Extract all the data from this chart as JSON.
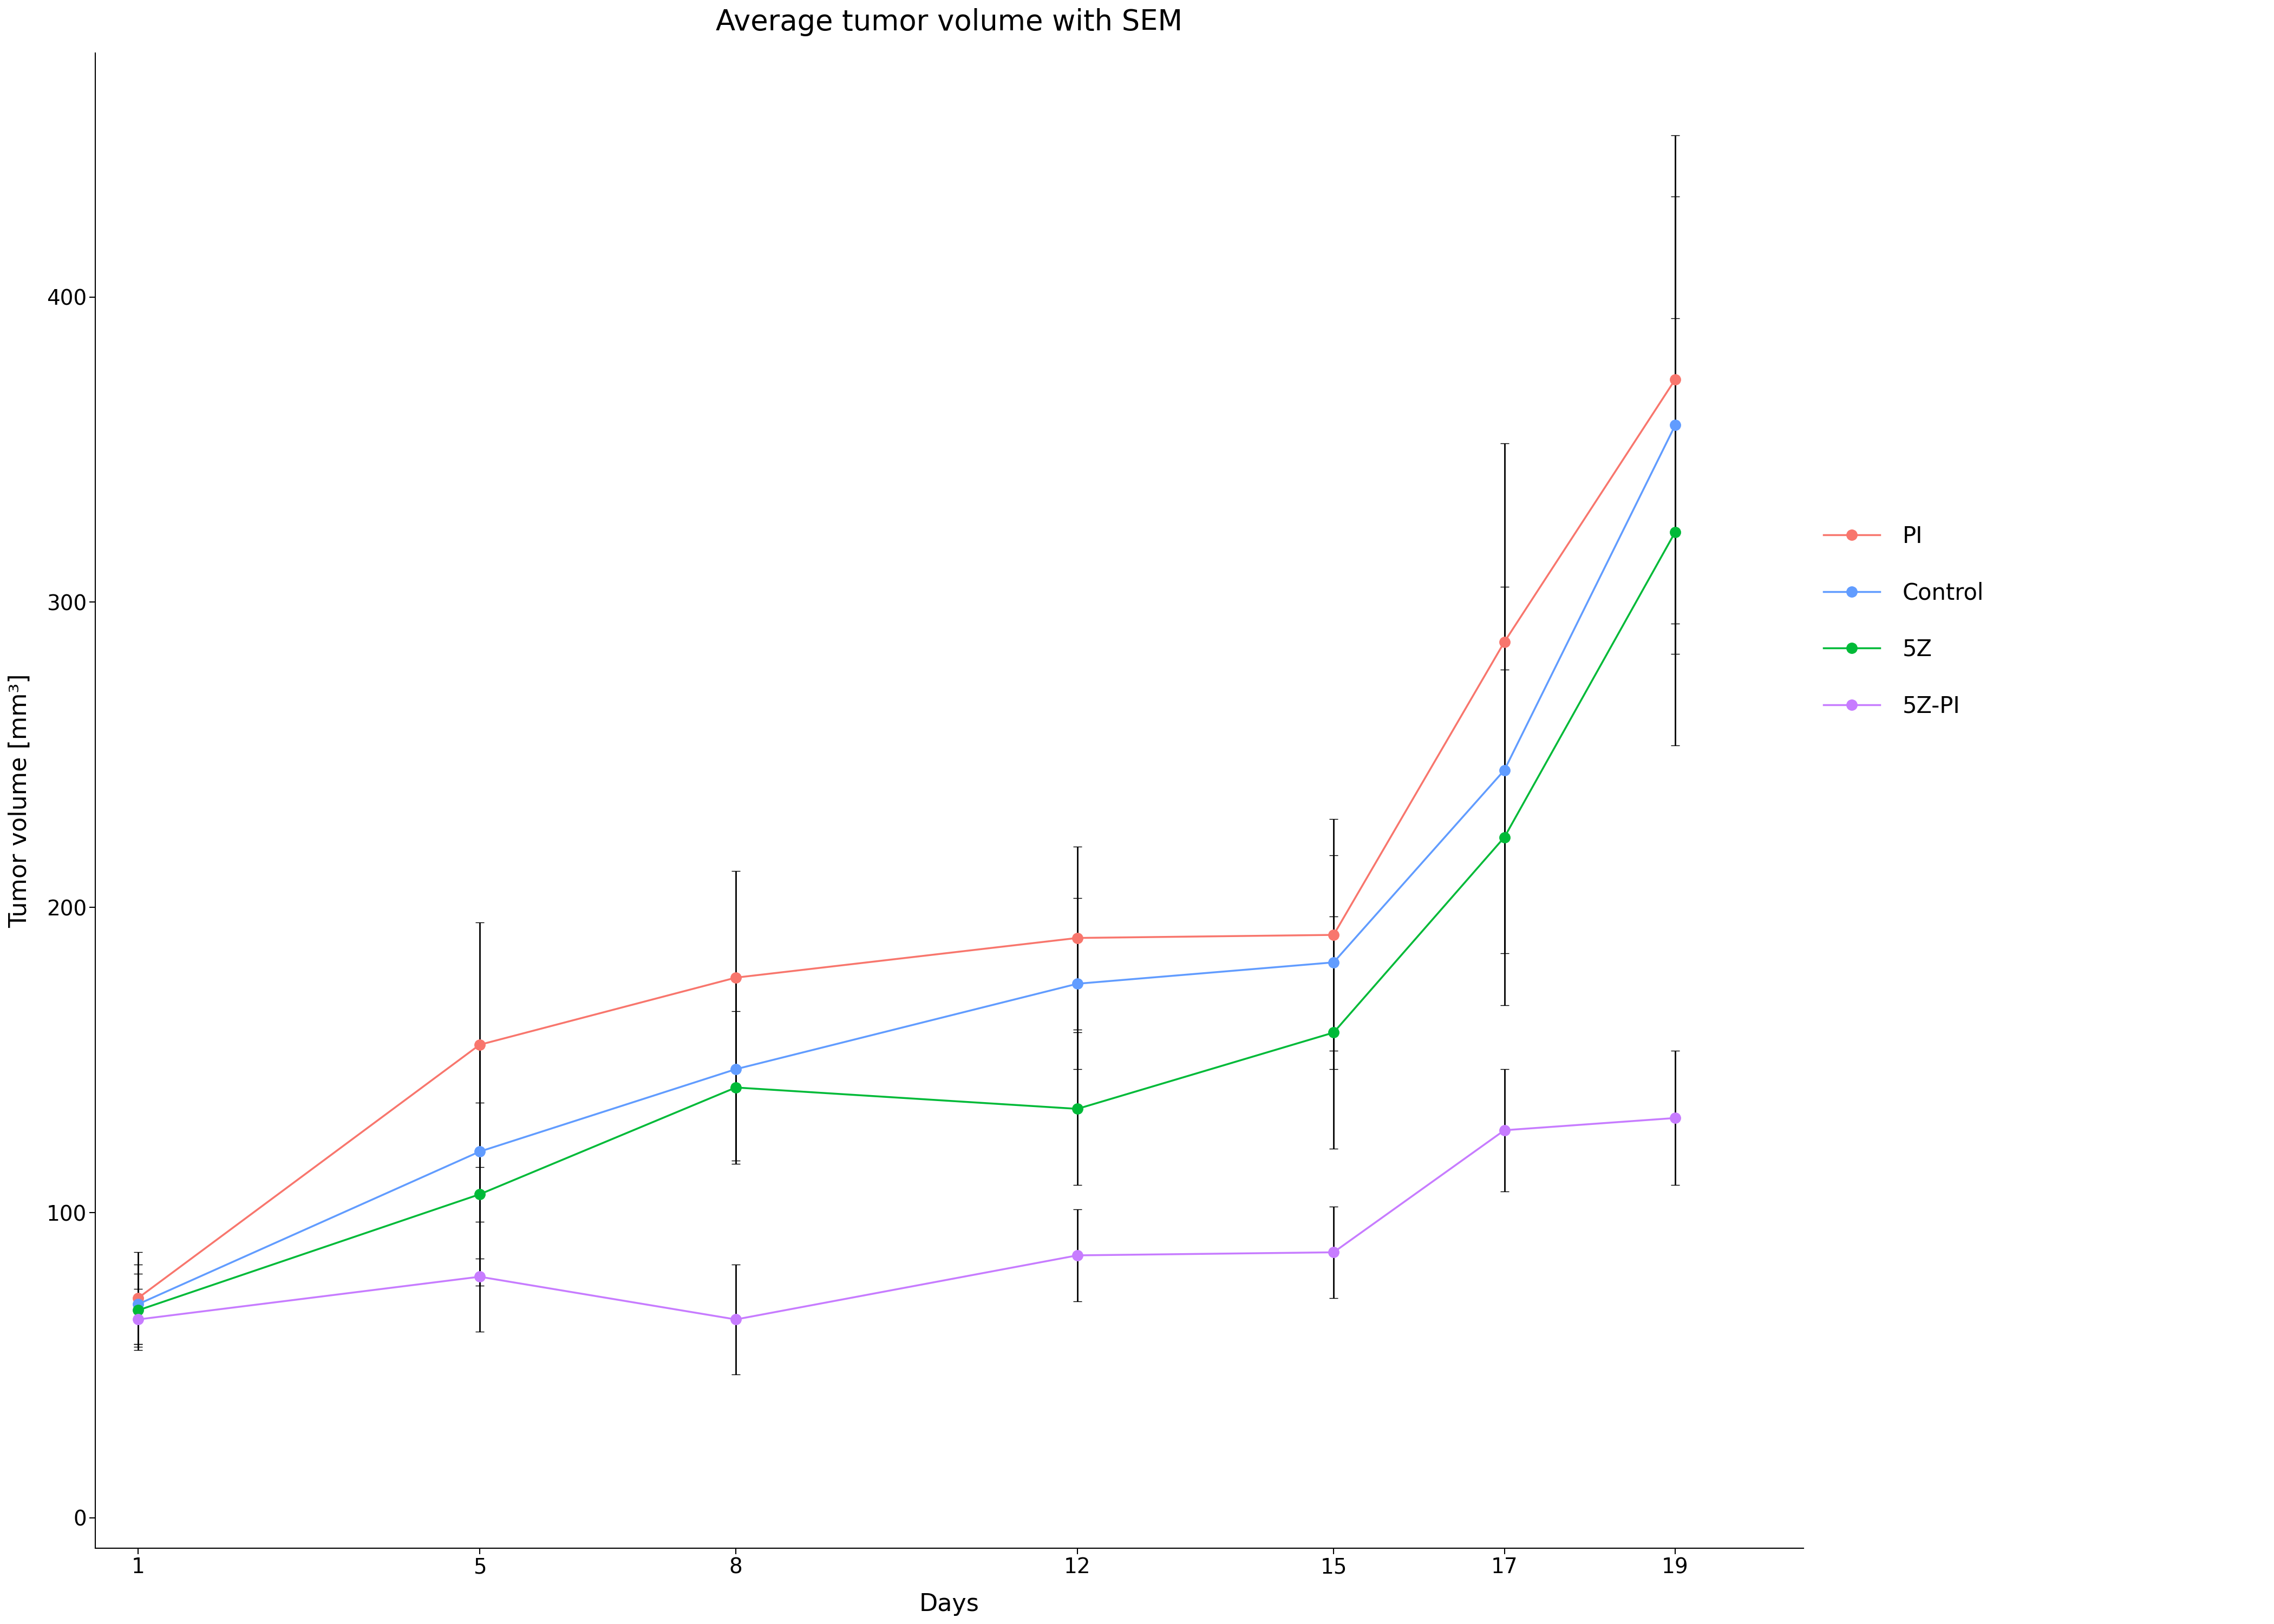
{
  "title": "Average tumor volume with SEM",
  "xlabel": "Days",
  "ylabel": "Tumor volume [mm³]",
  "days": [
    1,
    5,
    8,
    12,
    15,
    17,
    19
  ],
  "series": {
    "PI": {
      "color": "#F8766D",
      "values": [
        72,
        155,
        177,
        190,
        191,
        287,
        373
      ],
      "sem": [
        15,
        40,
        35,
        30,
        38,
        65,
        80
      ]
    },
    "Control": {
      "color": "#619CFF",
      "values": [
        70,
        120,
        147,
        175,
        182,
        245,
        358
      ],
      "sem": [
        13,
        35,
        30,
        28,
        35,
        60,
        75
      ]
    },
    "5Z": {
      "color": "#00BA38",
      "values": [
        68,
        106,
        141,
        134,
        159,
        223,
        323
      ],
      "sem": [
        12,
        30,
        25,
        25,
        38,
        55,
        70
      ]
    },
    "5Z-PI": {
      "color": "#C77CFF",
      "values": [
        65,
        79,
        65,
        86,
        87,
        127,
        131
      ],
      "sem": [
        10,
        18,
        18,
        15,
        15,
        20,
        22
      ]
    }
  },
  "ylim": [
    -10,
    480
  ],
  "yticks": [
    0,
    100,
    200,
    300,
    400
  ],
  "legend_order": [
    "PI",
    "Control",
    "5Z",
    "5Z-PI"
  ],
  "background_color": "#ffffff",
  "title_fontsize": 38,
  "label_fontsize": 32,
  "tick_fontsize": 28,
  "legend_fontsize": 30,
  "linewidth": 2.5,
  "markersize": 14,
  "capsize": 6,
  "elinewidth": 2.0
}
